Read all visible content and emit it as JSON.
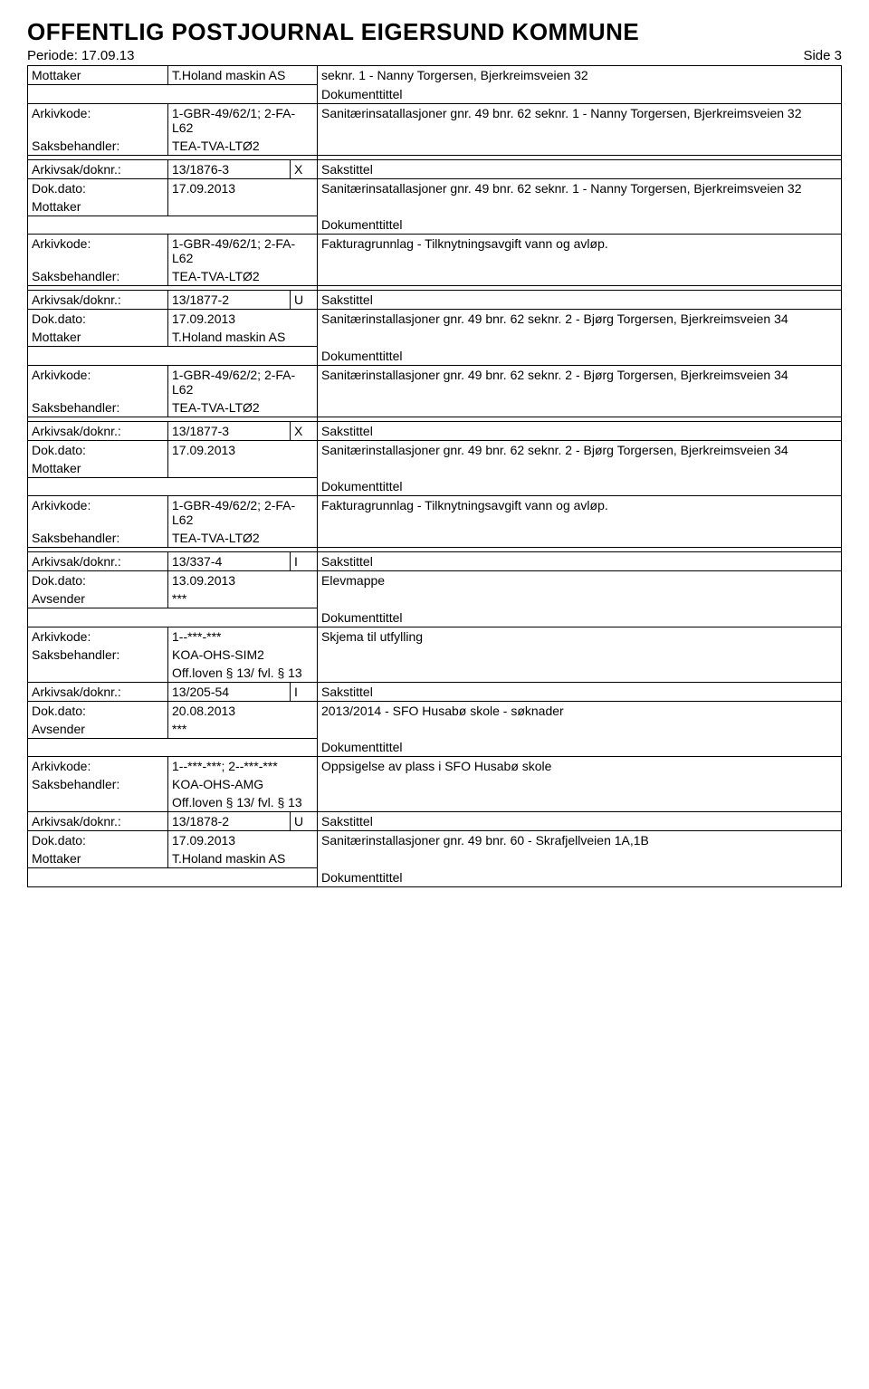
{
  "header": {
    "title": "OFFENTLIG POSTJOURNAL EIGERSUND KOMMUNE",
    "periode_label": "Periode: 17.09.13",
    "side_label": "Side 3"
  },
  "labels": {
    "mottaker": "Mottaker",
    "avsender": "Avsender",
    "arkivkode": "Arkivkode:",
    "saksbehandler": "Saksbehandler:",
    "arkivsak_doknr": "Arkivsak/doknr.:",
    "dok_dato": "Dok.dato:",
    "sakstittel": "Sakstittel",
    "dokumenttittel": "Dokumenttittel"
  },
  "block1": {
    "mottaker_val": "T.Holand maskin AS",
    "mottaker_desc": "seknr. 1 - Nanny Torgersen, Bjerkreimsveien 32",
    "arkivkode_val": "1-GBR-49/62/1; 2-FA-L62",
    "arkivkode_desc": "Sanitærinsatallasjoner gnr. 49 bnr. 62 seknr. 1 - Nanny Torgersen, Bjerkreimsveien 32",
    "saksbehandler_val": "TEA-TVA-LTØ2"
  },
  "block2": {
    "arkivsak_val": "13/1876-3",
    "arkivsak_code": "X",
    "dok_dato_val": "17.09.2013",
    "sakstittel_val": "Sanitærinsatallasjoner gnr. 49 bnr. 62 seknr. 1 - Nanny Torgersen, Bjerkreimsveien 32",
    "arkivkode_val": "1-GBR-49/62/1; 2-FA-L62",
    "arkivkode_desc": "Fakturagrunnlag - Tilknytningsavgift vann og avløp.",
    "saksbehandler_val": "TEA-TVA-LTØ2"
  },
  "block3": {
    "arkivsak_val": "13/1877-2",
    "arkivsak_code": "U",
    "dok_dato_val": "17.09.2013",
    "sakstittel_val": "Sanitærinstallasjoner gnr. 49 bnr. 62 seknr. 2 - Bjørg Torgersen, Bjerkreimsveien 34",
    "mottaker_val": "T.Holand maskin AS",
    "arkivkode_val": "1-GBR-49/62/2; 2-FA-L62",
    "arkivkode_desc": "Sanitærinstallasjoner gnr. 49 bnr. 62 seknr. 2 - Bjørg Torgersen, Bjerkreimsveien 34",
    "saksbehandler_val": "TEA-TVA-LTØ2"
  },
  "block4": {
    "arkivsak_val": "13/1877-3",
    "arkivsak_code": "X",
    "dok_dato_val": "17.09.2013",
    "sakstittel_val": "Sanitærinstallasjoner gnr. 49 bnr. 62 seknr. 2 - Bjørg Torgersen, Bjerkreimsveien 34",
    "arkivkode_val": "1-GBR-49/62/2; 2-FA-L62",
    "arkivkode_desc": "Fakturagrunnlag - Tilknytningsavgift vann og avløp.",
    "saksbehandler_val": "TEA-TVA-LTØ2"
  },
  "block5": {
    "arkivsak_val": "13/337-4",
    "arkivsak_code": "I",
    "dok_dato_val": "13.09.2013",
    "sakstittel_val": "Elevmappe",
    "avsender_val": "***",
    "arkivkode_val": "1--***-***",
    "arkivkode_desc": "Skjema til utfylling",
    "saksbehandler_val": "KOA-OHS-SIM2",
    "off_loven": "Off.loven § 13/ fvl. § 13"
  },
  "block6": {
    "arkivsak_val": "13/205-54",
    "arkivsak_code": "I",
    "dok_dato_val": "20.08.2013",
    "sakstittel_val": "2013/2014 - SFO Husabø skole - søknader",
    "avsender_val": "***",
    "arkivkode_val": "1--***-***; 2--***-***",
    "arkivkode_desc": "Oppsigelse av plass i SFO Husabø skole",
    "saksbehandler_val": "KOA-OHS-AMG",
    "off_loven": "Off.loven § 13/ fvl. § 13"
  },
  "block7": {
    "arkivsak_val": "13/1878-2",
    "arkivsak_code": "U",
    "dok_dato_val": "17.09.2013",
    "sakstittel_val": "Sanitærinstallasjoner gnr. 49 bnr. 60 - Skrafjellveien 1A,1B",
    "mottaker_val": "T.Holand maskin AS"
  }
}
